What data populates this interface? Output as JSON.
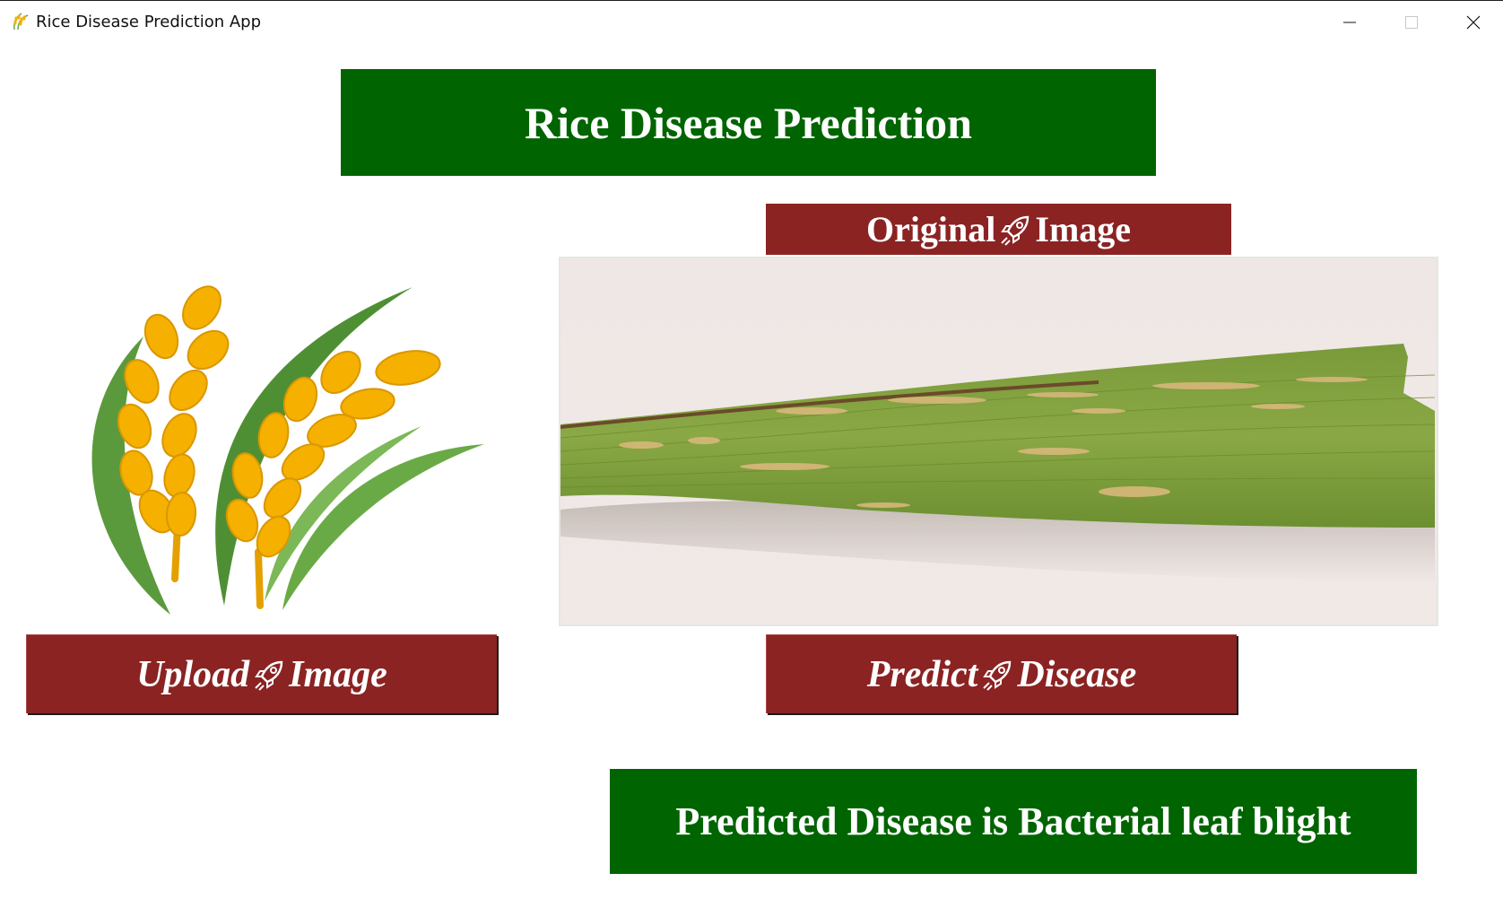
{
  "window": {
    "title": "Rice Disease Prediction App",
    "app_icon": "rice-sheaf-icon",
    "controls": [
      "minimize-icon",
      "maximize-icon",
      "close-icon"
    ]
  },
  "header": {
    "title": "Rice Disease Prediction"
  },
  "original_image": {
    "label_left": "Original",
    "label_right": "Image",
    "icon": "rocket-icon"
  },
  "upload_button": {
    "label_left": "Upload",
    "label_right": "Image",
    "icon": "rocket-icon"
  },
  "predict_button": {
    "label_left": "Predict",
    "label_right": "Disease",
    "icon": "rocket-icon"
  },
  "result": {
    "text": "Predicted Disease is Bacterial leaf blight"
  },
  "colors": {
    "banner_green": "#006400",
    "button_maroon": "#8b2323",
    "text_white": "#ffffff",
    "rice_grain": "#f5b000",
    "rice_leaf": "#5fa040"
  }
}
